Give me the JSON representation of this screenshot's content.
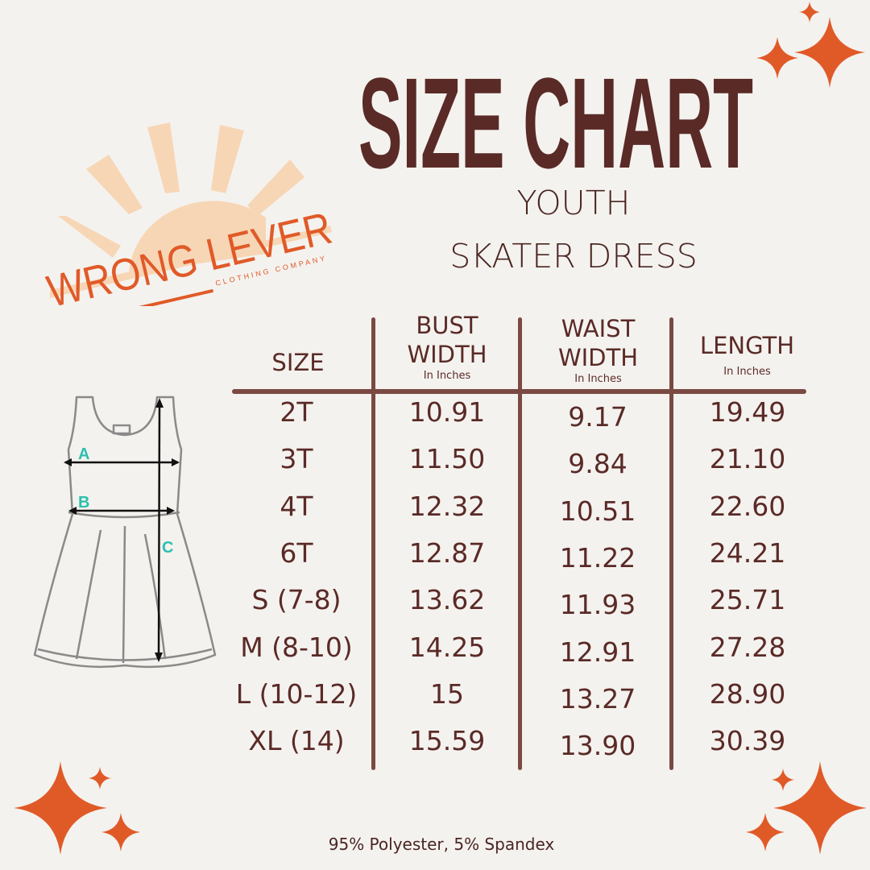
{
  "brand": {
    "name": "WRONG LEVER",
    "tagline": "CLOTHING COMPANY"
  },
  "header": {
    "title": "SIZE CHART",
    "subtitle1": "YOUTH",
    "subtitle2": "SKATER DRESS"
  },
  "table": {
    "columns": [
      {
        "label": "SIZE",
        "unit": ""
      },
      {
        "label": "BUST WIDTH",
        "line1": "BUST",
        "line2": "WIDTH",
        "unit": "In Inches"
      },
      {
        "label": "WAIST WIDTH",
        "line1": "WAIST",
        "line2": "WIDTH",
        "unit": "In Inches"
      },
      {
        "label": "LENGTH",
        "unit": "In Inches"
      }
    ],
    "rows": [
      [
        "2T",
        "10.91",
        "9.17",
        "19.49"
      ],
      [
        "3T",
        "11.50",
        "9.84",
        "21.10"
      ],
      [
        "4T",
        "12.32",
        "10.51",
        "22.60"
      ],
      [
        "6T",
        "12.87",
        "11.22",
        "24.21"
      ],
      [
        "S (7-8)",
        "13.62",
        "11.93",
        "25.71"
      ],
      [
        "M (8-10)",
        "14.25",
        "12.91",
        "27.28"
      ],
      [
        "L (10-12)",
        "15",
        "13.27",
        "28.90"
      ],
      [
        "XL (14)",
        "15.59",
        "13.90",
        "30.39"
      ]
    ]
  },
  "diagram": {
    "labels": [
      "A",
      "B",
      "C"
    ]
  },
  "footer": {
    "material": "95% Polyester, 5% Spandex"
  },
  "colors": {
    "text": "#5a2a27",
    "lines": "#7a4a42",
    "accent": "#e05a28",
    "sun": "#f7d6b6",
    "diagram_labels": "#2bbfb0",
    "background": "#f4f2ee"
  },
  "icons": [
    "sparkle-star-icon",
    "sun-logo-icon",
    "dress-diagram-icon"
  ]
}
